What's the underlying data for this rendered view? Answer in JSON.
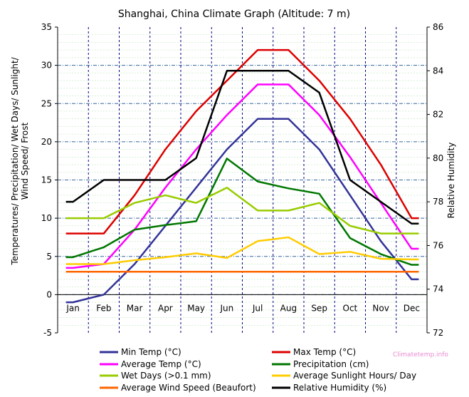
{
  "chart_data": {
    "type": "line",
    "title": "Shanghai, China Climate Graph (Altitude: 7 m)",
    "ylabel_left": "Temperatures/ Precipitation/ Wet Days/ Sunlight/ Wind Speed/ Frost",
    "ylabel_right": "Relative Humidity",
    "categories": [
      "Jan",
      "Feb",
      "Mar",
      "Apr",
      "May",
      "Jun",
      "Jul",
      "Aug",
      "Sep",
      "Oct",
      "Nov",
      "Dec"
    ],
    "ylim_left": [
      -5,
      35
    ],
    "yticks_left": [
      -5,
      0,
      5,
      10,
      15,
      20,
      25,
      30,
      35
    ],
    "ylim_right": [
      72,
      86
    ],
    "yticks_right": [
      72,
      74,
      76,
      78,
      80,
      82,
      84,
      86
    ],
    "grid": true,
    "legend_position": "bottom",
    "watermark": "Climatetemp.info",
    "series": [
      {
        "name": "Min Temp (°C)",
        "color": "#333399",
        "axis": "left",
        "values": [
          -1,
          0,
          4,
          9,
          14,
          19,
          23,
          23,
          19,
          13,
          7,
          2
        ]
      },
      {
        "name": "Max Temp (°C)",
        "color": "#dd0000",
        "axis": "left",
        "values": [
          8,
          8,
          13,
          19,
          24,
          28,
          32,
          32,
          28,
          23,
          17,
          10
        ]
      },
      {
        "name": "Average Temp (°C)",
        "color": "#ff00ff",
        "axis": "left",
        "values": [
          3.5,
          4,
          8.5,
          14,
          19,
          23.5,
          27.5,
          27.5,
          23.5,
          18,
          12,
          6
        ]
      },
      {
        "name": "Precipitation (cm)",
        "color": "#007700",
        "axis": "left",
        "values": [
          4.9,
          6.2,
          8.5,
          9.1,
          9.6,
          17.8,
          14.8,
          13.9,
          13.2,
          7.4,
          5.3,
          3.9
        ]
      },
      {
        "name": "Wet Days (>0.1 mm)",
        "color": "#99cc00",
        "axis": "left",
        "values": [
          10,
          10,
          12,
          13,
          12,
          14,
          11,
          11,
          12,
          9,
          8,
          8
        ]
      },
      {
        "name": "Average Sunlight Hours/ Day",
        "color": "#ffcc00",
        "axis": "left",
        "values": [
          4,
          4,
          4.5,
          4.9,
          5.4,
          4.8,
          7,
          7.5,
          5.3,
          5.6,
          4.7,
          4.6
        ]
      },
      {
        "name": "Average Wind Speed (Beaufort)",
        "color": "#ff6600",
        "axis": "left",
        "values": [
          3,
          3,
          3,
          3,
          3,
          3,
          3,
          3,
          3,
          3,
          3,
          3
        ]
      },
      {
        "name": "Relative Humidity (%)",
        "color": "#000000",
        "axis": "right",
        "values": [
          78,
          79,
          79,
          79,
          80,
          84,
          84,
          84,
          83,
          79,
          78,
          77
        ]
      }
    ]
  }
}
